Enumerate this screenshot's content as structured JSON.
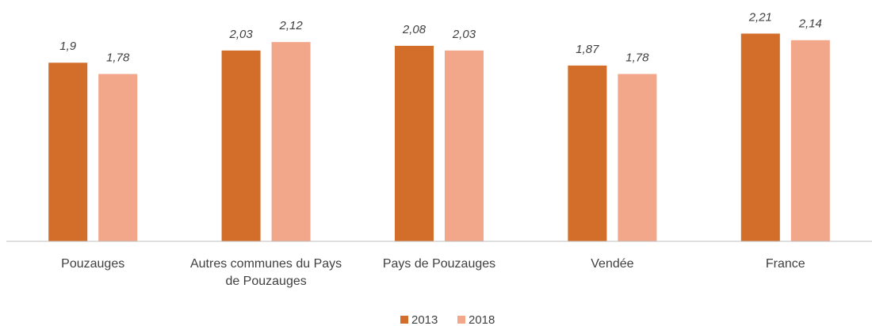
{
  "chart_data": {
    "type": "bar",
    "categories": [
      "Pouzauges",
      "Autres communes du Pays de Pouzauges",
      "Pays de Pouzauges",
      "Vendée",
      "France"
    ],
    "series": [
      {
        "name": "2013",
        "color": "#d36e2a",
        "values": [
          1.9,
          2.03,
          2.08,
          1.87,
          2.21
        ],
        "value_labels": [
          "1,9",
          "2,03",
          "2,08",
          "1,87",
          "2,21"
        ]
      },
      {
        "name": "2018",
        "color": "#f2a68a",
        "values": [
          1.78,
          2.12,
          2.03,
          1.78,
          2.14
        ],
        "value_labels": [
          "1,78",
          "2,12",
          "2,03",
          "1,78",
          "2,14"
        ]
      }
    ],
    "ylim": [
      0,
      2.5
    ],
    "legend": "bottom"
  }
}
